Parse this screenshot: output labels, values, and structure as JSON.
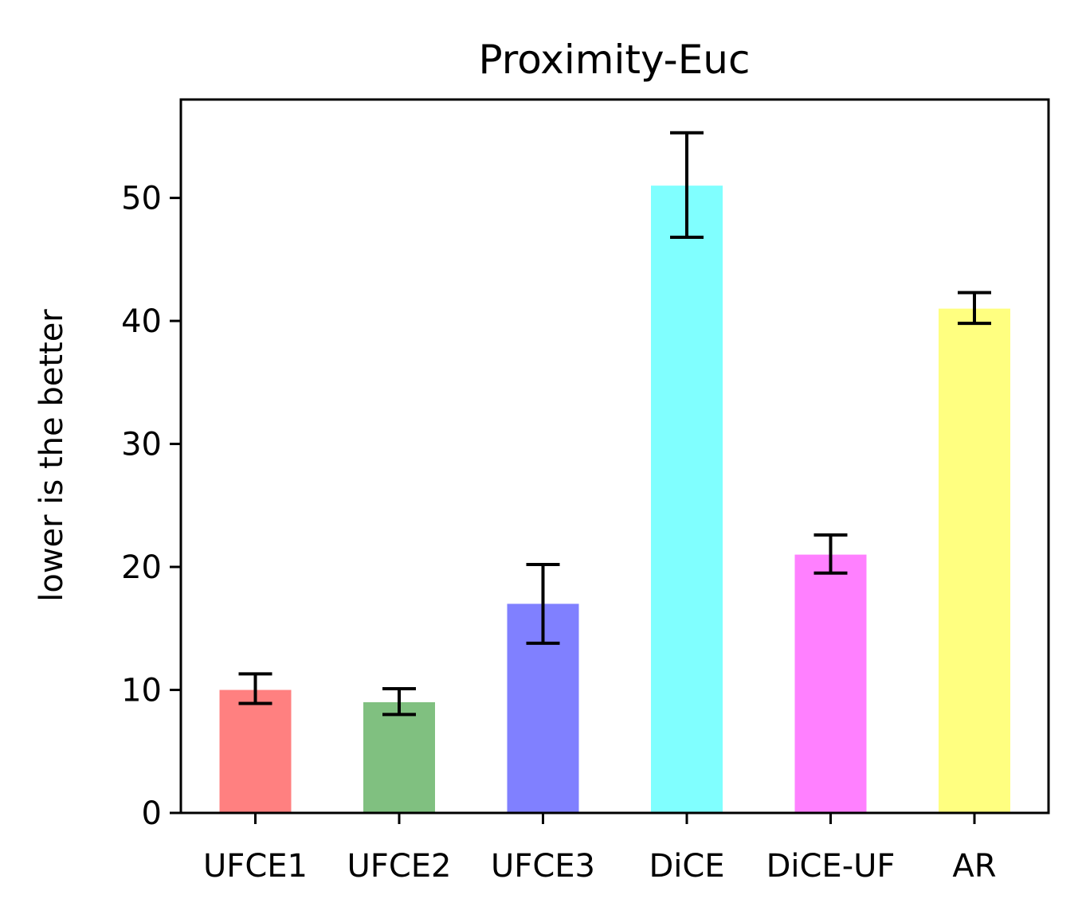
{
  "chart_data": {
    "type": "bar",
    "title": "Proximity-Euc",
    "xlabel": "",
    "ylabel": "lower is the better",
    "categories": [
      "UFCE1",
      "UFCE2",
      "UFCE3",
      "DiCE",
      "DiCE-UF",
      "AR"
    ],
    "values": [
      10,
      9,
      17,
      51,
      21,
      41
    ],
    "error_low": [
      8.9,
      8.0,
      13.8,
      46.8,
      19.5,
      39.8
    ],
    "error_high": [
      11.3,
      10.1,
      20.2,
      55.3,
      22.6,
      42.3
    ],
    "colors": [
      "#ff8080",
      "#80c080",
      "#8080ff",
      "#80ffff",
      "#ff80ff",
      "#ffff80"
    ],
    "ylim": [
      0,
      58
    ],
    "yticks": [
      0,
      10,
      20,
      30,
      40,
      50
    ],
    "grid": false,
    "legend": "none"
  }
}
